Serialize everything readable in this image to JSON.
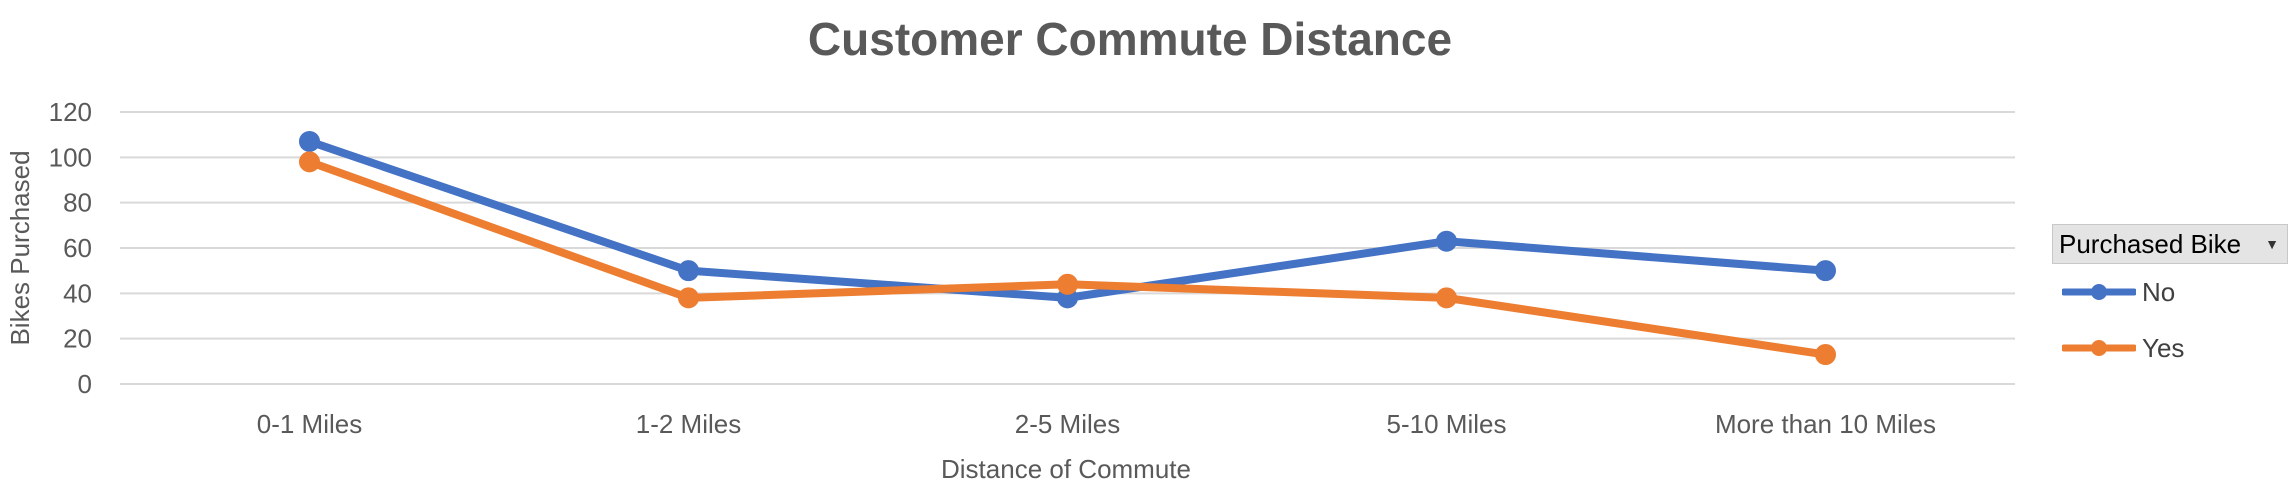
{
  "chart_data": {
    "type": "line",
    "title": "Customer Commute Distance",
    "xlabel": "Distance of Commute",
    "ylabel": "Bikes Purchased",
    "ylim": [
      0,
      120
    ],
    "yticks": [
      "0",
      "20",
      "40",
      "60",
      "80",
      "100",
      "120"
    ],
    "categories": [
      "0-1 Miles",
      "1-2 Miles",
      "2-5 Miles",
      "5-10 Miles",
      "More than 10 Miles"
    ],
    "series": [
      {
        "name": "No",
        "color": "#4472c4",
        "values": [
          107,
          50,
          38,
          63,
          50
        ]
      },
      {
        "name": "Yes",
        "color": "#ed7d31",
        "values": [
          98,
          38,
          44,
          38,
          13
        ]
      }
    ],
    "legend": {
      "title": "Purchased Bike",
      "dropdown_icon": "chevron-down-icon",
      "position": "right"
    },
    "grid": true
  }
}
